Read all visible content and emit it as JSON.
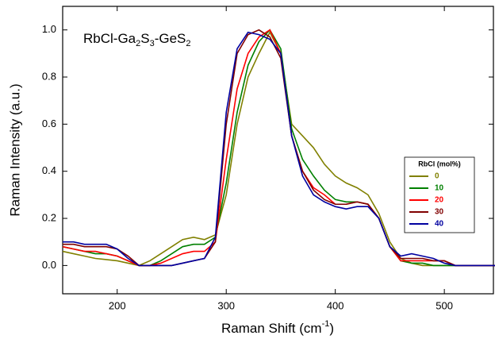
{
  "chart_data": {
    "type": "line",
    "annotation": [
      "RbCl-Ga",
      "2",
      "S",
      "3",
      "-GeS",
      "2"
    ],
    "xlabel": [
      "Raman Shift (cm",
      "-1",
      ")"
    ],
    "ylabel": "Raman Intensity (a.u.)",
    "legend_title": "RbCl (mol%)",
    "x": [
      150,
      160,
      170,
      180,
      190,
      200,
      210,
      220,
      230,
      240,
      250,
      260,
      270,
      280,
      290,
      300,
      310,
      320,
      330,
      340,
      350,
      360,
      370,
      380,
      390,
      400,
      410,
      420,
      430,
      440,
      450,
      460,
      470,
      480,
      490,
      500,
      510,
      520,
      530,
      540,
      550
    ],
    "series": [
      {
        "name": "0",
        "color": "#808000",
        "values": [
          0.06,
          0.05,
          0.04,
          0.03,
          0.025,
          0.02,
          0.01,
          0.0,
          0.02,
          0.05,
          0.08,
          0.11,
          0.12,
          0.11,
          0.13,
          0.3,
          0.6,
          0.8,
          0.9,
          0.99,
          0.9,
          0.6,
          0.55,
          0.5,
          0.43,
          0.38,
          0.35,
          0.33,
          0.3,
          0.22,
          0.1,
          0.03,
          0.01,
          0.0,
          0.0,
          0.0,
          0.0,
          0.0,
          0.0,
          0.0,
          0.0
        ]
      },
      {
        "name": "10",
        "color": "#008000",
        "values": [
          0.08,
          0.07,
          0.06,
          0.05,
          0.05,
          0.04,
          0.02,
          0.0,
          0.0,
          0.02,
          0.05,
          0.08,
          0.09,
          0.09,
          0.12,
          0.35,
          0.65,
          0.85,
          0.95,
          1.0,
          0.92,
          0.58,
          0.45,
          0.38,
          0.32,
          0.28,
          0.27,
          0.27,
          0.26,
          0.2,
          0.08,
          0.02,
          0.01,
          0.01,
          0.0,
          0.0,
          0.0,
          0.0,
          0.0,
          0.0,
          0.0
        ]
      },
      {
        "name": "20",
        "color": "#ff0000",
        "values": [
          0.08,
          0.07,
          0.06,
          0.06,
          0.05,
          0.04,
          0.02,
          0.0,
          0.0,
          0.01,
          0.03,
          0.05,
          0.06,
          0.06,
          0.1,
          0.45,
          0.75,
          0.9,
          0.97,
          1.0,
          0.9,
          0.55,
          0.4,
          0.33,
          0.3,
          0.26,
          0.26,
          0.27,
          0.26,
          0.2,
          0.08,
          0.02,
          0.02,
          0.02,
          0.02,
          0.02,
          0.0,
          0.0,
          0.0,
          0.0,
          0.0
        ]
      },
      {
        "name": "30",
        "color": "#800000",
        "values": [
          0.09,
          0.09,
          0.08,
          0.08,
          0.08,
          0.07,
          0.04,
          0.0,
          0.0,
          0.0,
          0.0,
          0.01,
          0.02,
          0.03,
          0.1,
          0.6,
          0.9,
          0.98,
          1.0,
          0.97,
          0.88,
          0.55,
          0.4,
          0.32,
          0.28,
          0.26,
          0.26,
          0.27,
          0.26,
          0.2,
          0.08,
          0.03,
          0.03,
          0.03,
          0.02,
          0.02,
          0.0,
          0.0,
          0.0,
          0.0,
          0.0
        ]
      },
      {
        "name": "40",
        "color": "#0000a0",
        "values": [
          0.1,
          0.1,
          0.09,
          0.09,
          0.09,
          0.07,
          0.03,
          0.0,
          0.0,
          0.0,
          0.0,
          0.01,
          0.02,
          0.03,
          0.12,
          0.65,
          0.92,
          0.99,
          0.98,
          0.96,
          0.9,
          0.55,
          0.38,
          0.3,
          0.27,
          0.25,
          0.24,
          0.25,
          0.25,
          0.2,
          0.08,
          0.04,
          0.05,
          0.04,
          0.03,
          0.01,
          0.0,
          0.0,
          0.0,
          0.0,
          0.0
        ]
      }
    ],
    "xlim": [
      150,
      545
    ],
    "ylim": [
      -0.12,
      1.1
    ],
    "xticks": [
      200,
      300,
      400,
      500
    ],
    "yticks": [
      {
        "value": 0,
        "label": "0.0"
      },
      0.2,
      0.4,
      0.6,
      0.8,
      {
        "value": 1,
        "label": "1.0"
      }
    ]
  }
}
